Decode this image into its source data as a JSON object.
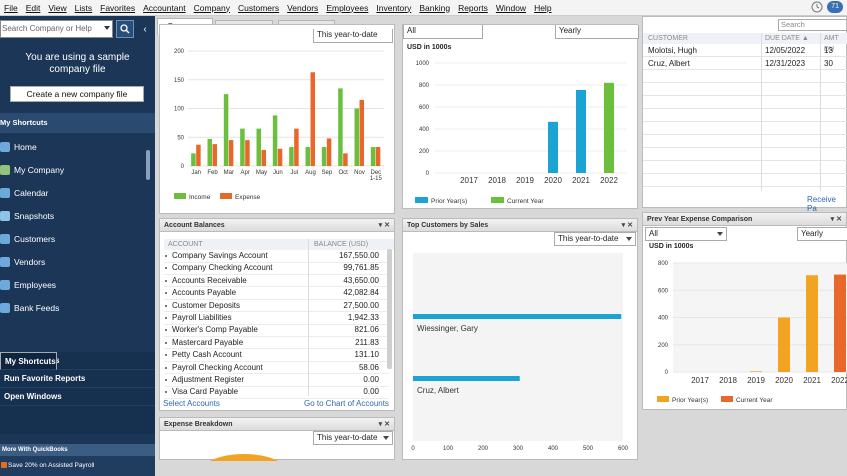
{
  "menu": [
    "File",
    "Edit",
    "View",
    "Lists",
    "Favorites",
    "Accountant",
    "Company",
    "Customers",
    "Vendors",
    "Employees",
    "Inventory",
    "Banking",
    "Reports",
    "Window",
    "Help"
  ],
  "menu_badge": "71",
  "sidebar": {
    "search_placeholder": "Search Company or Help",
    "sample_line1": "You are using a sample",
    "sample_line2": "company file",
    "create_button": "Create a new company file",
    "shortcuts_header": "My Shortcuts",
    "items": [
      {
        "label": "Home",
        "color": "#6fa8dc"
      },
      {
        "label": "My Company",
        "color": "#93c47d"
      },
      {
        "label": "Calendar",
        "color": "#6fa8dc"
      },
      {
        "label": "Snapshots",
        "color": "#8ec3e8"
      },
      {
        "label": "Customers",
        "color": "#6fa8dc"
      },
      {
        "label": "Vendors",
        "color": "#6fa8dc"
      },
      {
        "label": "Employees",
        "color": "#6fa8dc"
      },
      {
        "label": "Bank Feeds",
        "color": "#6fa8dc"
      }
    ],
    "lower": [
      "My Shortcuts",
      "View Balances",
      "Run Favorite Reports",
      "Open Windows"
    ],
    "more": "More With QuickBooks",
    "promo": "Save 20% on Assisted Payroll"
  },
  "tabs": [
    "Company",
    "Payments",
    "Customer"
  ],
  "income_expense": {
    "chart_data": {
      "type": "bar",
      "categories": [
        "Jan",
        "Feb",
        "Mar",
        "Apr",
        "May",
        "Jun",
        "Jul",
        "Aug",
        "Sep",
        "Oct",
        "Nov",
        "Dec 1-15"
      ],
      "series": [
        {
          "name": "Income",
          "color": "#6cbf3c",
          "values": [
            22,
            47,
            125,
            65,
            65,
            88,
            33,
            33,
            33,
            135,
            100,
            33
          ]
        },
        {
          "name": "Expense",
          "color": "#e8682b",
          "values": [
            37,
            38,
            45,
            45,
            28,
            30,
            65,
            163,
            48,
            22,
            115,
            33
          ]
        }
      ],
      "ylim": [
        0,
        200
      ],
      "yticks": [
        "200",
        "150",
        "100",
        "50",
        "0"
      ]
    }
  },
  "sales": {
    "title": "USD in 1000s",
    "chart_data": {
      "type": "bar",
      "categories": [
        "2017",
        "2018",
        "2019",
        "2020",
        "2021",
        "2022"
      ],
      "series": [
        {
          "name": "Prior Year(s)",
          "color": "#1ba3d4",
          "values": [
            0,
            0,
            0,
            465,
            755,
            0
          ]
        },
        {
          "name": "Current Year",
          "color": "#6cbf3c",
          "values": [
            0,
            0,
            0,
            0,
            0,
            820
          ]
        }
      ],
      "ylim": [
        0,
        1000
      ],
      "yticks": [
        "1000",
        "800",
        "600",
        "400",
        "200",
        "0"
      ]
    }
  },
  "overdue": {
    "search": "Search",
    "columns": [
      "CUSTOMER",
      "DUE DATE ▲",
      "AMT DU"
    ],
    "rows": [
      {
        "customer": "Molotsi, Hugh",
        "due": "12/05/2022",
        "amt": "13"
      },
      {
        "customer": "Cruz, Albert",
        "due": "12/31/2023",
        "amt": "30"
      }
    ],
    "link": "Receive Pa"
  },
  "balances": {
    "title": "Account Balances",
    "col_account": "ACCOUNT",
    "col_balance": "BALANCE (USD)",
    "rows": [
      {
        "name": "Company Savings Account",
        "value": "167,550.00"
      },
      {
        "name": "Company Checking Account",
        "value": "99,761.85"
      },
      {
        "name": "Accounts Receivable",
        "value": "43,650.00"
      },
      {
        "name": "Accounts Payable",
        "value": "42,082.84"
      },
      {
        "name": "Customer Deposits",
        "value": "27,500.00"
      },
      {
        "name": "Payroll Liabilities",
        "value": "1,942.33"
      },
      {
        "name": "Worker's Comp Payable",
        "value": "821.06"
      },
      {
        "name": "Mastercard Payable",
        "value": "211.83"
      },
      {
        "name": "Petty Cash Account",
        "value": "131.10"
      },
      {
        "name": "Payroll Checking Account",
        "value": "58.06"
      },
      {
        "name": "Adjustment Register",
        "value": "0.00"
      },
      {
        "name": "Visa Card Payable",
        "value": "0.00"
      }
    ],
    "link_select": "Select Accounts",
    "link_chart": "Go to Chart of Accounts"
  },
  "top_customers": {
    "title": "Top Customers by Sales",
    "period": "This year-to-date",
    "chart_data": {
      "type": "bar",
      "categories": [
        "Wiessinger, Gary",
        "Cruz, Albert"
      ],
      "values": [
        595,
        305
      ],
      "color": "#1ba3d4",
      "xlim": [
        0,
        600
      ],
      "xticks": [
        "0",
        "100",
        "200",
        "300",
        "400",
        "500",
        "600"
      ]
    }
  },
  "expense_breakdown": {
    "title": "Expense Breakdown",
    "period": "This year-to-date"
  },
  "prev_year": {
    "title": "Prev Year Expense Comparison",
    "filter": "All",
    "period": "Yearly",
    "units": "USD in 1000s",
    "chart_data": {
      "type": "bar",
      "categories": [
        "2017",
        "2018",
        "2019",
        "2020",
        "2021",
        "2022"
      ],
      "series": [
        {
          "name": "Prior Year(s)",
          "color": "#f2a321",
          "values": [
            0,
            0,
            5,
            400,
            710,
            0
          ]
        },
        {
          "name": "Current Year",
          "color": "#e8682b",
          "values": [
            0,
            0,
            0,
            0,
            0,
            715
          ]
        }
      ],
      "ylim": [
        0,
        800
      ],
      "yticks": [
        "800",
        "600",
        "400",
        "200",
        "0"
      ]
    }
  },
  "income_top": {
    "period": "This year-to-date"
  },
  "sales_top": {
    "filter": "All",
    "period": "Yearly"
  }
}
